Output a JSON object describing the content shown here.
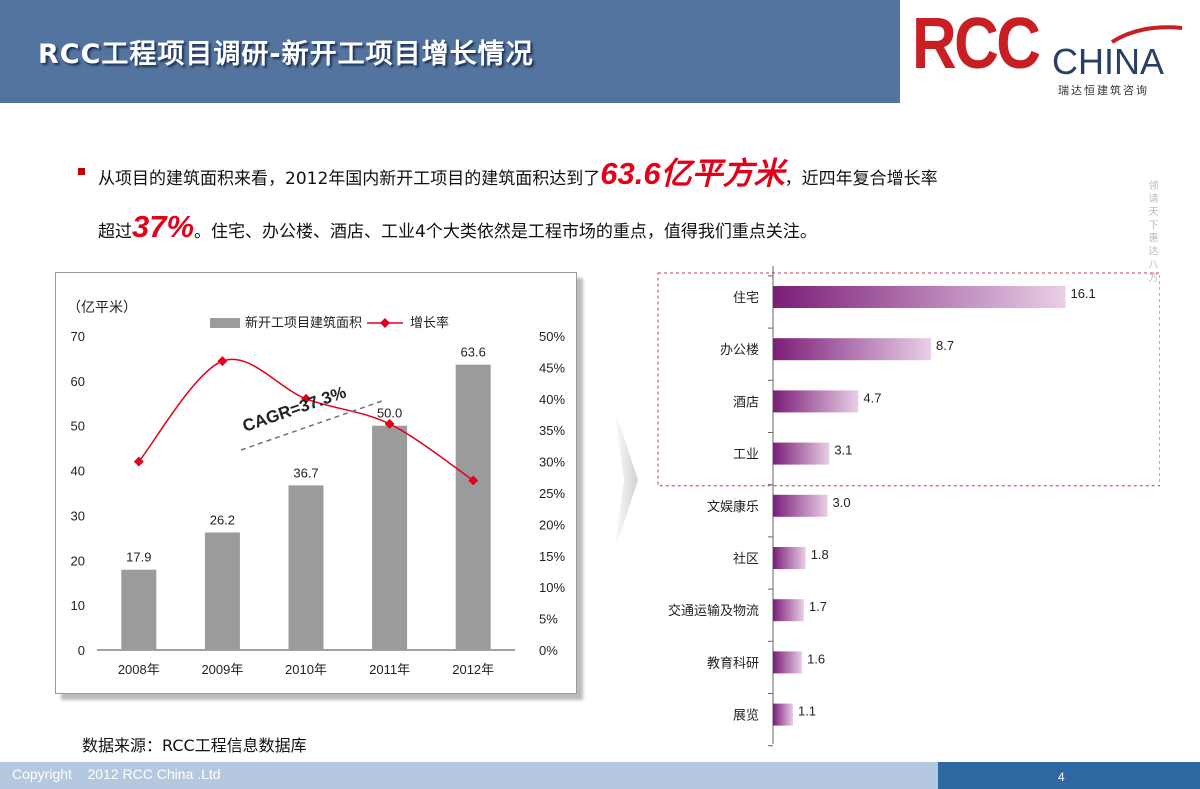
{
  "header": {
    "title": "RCC工程项目调研-新开工项目增长情况"
  },
  "logo": {
    "brand": "RCC",
    "suffix": "CHINA",
    "subtitle": "瑞达恒建筑咨询"
  },
  "summary": {
    "line1_a": "从项目的建筑面积来看，2012年国内新开工项目的建筑面积达到了",
    "line1_big": "63.6亿平方米",
    "line1_b": "，近四年复合增长率",
    "line2_a": "超过",
    "line2_big": "37%",
    "line2_b": "。住宅、办公楼、酒店、工业4个大类依然是工程市场的重点，值得我们重点关注。"
  },
  "side_text": "领 请 天 下 惠 达 八 方",
  "source": "数据来源：RCC工程信息数据库",
  "footer": {
    "copyright": "Copyright    2012 RCC China .Ltd",
    "page": "4"
  },
  "colors": {
    "header_bg": "#5474a0",
    "bar_gray": "#9b9b9b",
    "line_red": "#e2001a",
    "h_bar_dark": "#7b1d78",
    "h_bar_light": "#e8cfe6",
    "highlight_box": "#c8385a"
  },
  "chart_data": [
    {
      "type": "bar",
      "unit_label": "（亿平米）",
      "categories": [
        "2008年",
        "2009年",
        "2010年",
        "2011年",
        "2012年"
      ],
      "series": [
        {
          "name": "新开工项目建筑面积",
          "type": "bar",
          "values": [
            17.9,
            26.2,
            36.7,
            50.0,
            63.6
          ],
          "value_labels": [
            "17.9",
            "26.2",
            "36.7",
            "50.0",
            "63.6"
          ]
        },
        {
          "name": "增长率",
          "type": "line",
          "axis": "right",
          "values": [
            30,
            46,
            40,
            36,
            27
          ]
        }
      ],
      "ylim": [
        0,
        70
      ],
      "yticks": [
        "0",
        "10",
        "20",
        "30",
        "40",
        "50",
        "60",
        "70"
      ],
      "y2lim": [
        0,
        50
      ],
      "y2ticks": [
        "0%",
        "5%",
        "10%",
        "15%",
        "20%",
        "25%",
        "30%",
        "35%",
        "40%",
        "45%",
        "50%"
      ],
      "annotation": "CAGR=37.3%",
      "legend_position": "top"
    },
    {
      "type": "bar",
      "orientation": "horizontal",
      "categories": [
        "住宅",
        "办公楼",
        "酒店",
        "工业",
        "文娱康乐",
        "社区",
        "交通运输及物流",
        "教育科研",
        "展览"
      ],
      "values": [
        16.1,
        8.7,
        4.7,
        3.1,
        3.0,
        1.8,
        1.7,
        1.6,
        1.1
      ],
      "value_labels": [
        "16.1",
        "8.7",
        "4.7",
        "3.1",
        "3.0",
        "1.8",
        "1.7",
        "1.6",
        "1.1"
      ],
      "xlim": [
        0,
        18
      ],
      "highlighted": [
        "住宅",
        "办公楼",
        "酒店",
        "工业"
      ]
    }
  ]
}
